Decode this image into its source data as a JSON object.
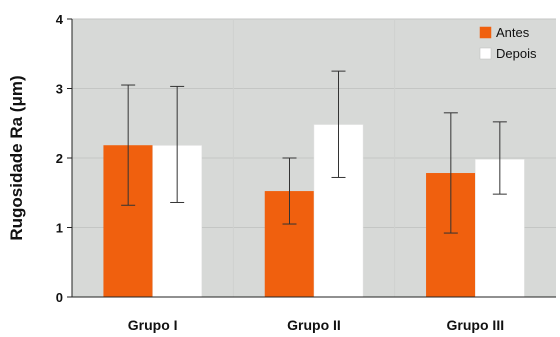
{
  "chart_data": {
    "type": "bar",
    "ylabel": "Rugosidade Ra (μm)",
    "categories": [
      "Grupo I",
      "Grupo II",
      "Grupo III"
    ],
    "ylim": [
      0,
      4
    ],
    "yticks": [
      0,
      1,
      2,
      3,
      4
    ],
    "grid": true,
    "legend": "top-right",
    "series": [
      {
        "name": "Antes",
        "color": "#f0600e",
        "values": [
          2.18,
          1.52,
          1.78
        ],
        "error_low": [
          1.32,
          1.05,
          0.92
        ],
        "error_high": [
          3.05,
          2.0,
          2.65
        ]
      },
      {
        "name": "Depois",
        "color": "#ffffff",
        "values": [
          2.18,
          2.48,
          1.98
        ],
        "error_low": [
          1.36,
          1.72,
          1.48
        ],
        "error_high": [
          3.03,
          3.25,
          2.52
        ]
      }
    ],
    "plot_background": "#d7d9d7"
  }
}
